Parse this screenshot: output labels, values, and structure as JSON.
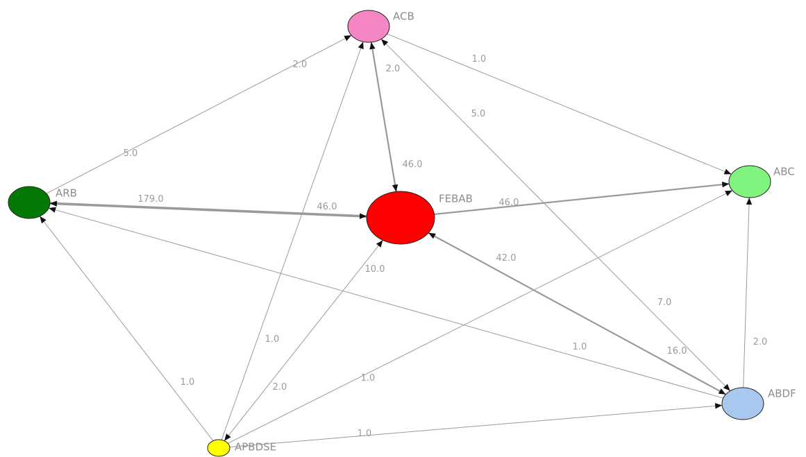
{
  "nodes": [
    {
      "id": "ACB",
      "label": "ACB",
      "color": "#f486c4",
      "size": "medium"
    },
    {
      "id": "ARB",
      "label": "ARB",
      "color": "#047a04",
      "size": "medium"
    },
    {
      "id": "FEBAB",
      "label": "FEBAB",
      "color": "#ff0000",
      "size": "large"
    },
    {
      "id": "ABC",
      "label": "ABC",
      "color": "#80f47f",
      "size": "medium"
    },
    {
      "id": "ABDF",
      "label": "ABDF",
      "color": "#a8c8f0",
      "size": "medium"
    },
    {
      "id": "APBDSE",
      "label": "APBDSE",
      "color": "#ffff00",
      "size": "small"
    }
  ],
  "edges": [
    {
      "id": "arb-acb",
      "from": "ARB",
      "to": "ACB",
      "label_near_source": "5.0",
      "label_near_target": "2.0",
      "weight": "thin"
    },
    {
      "id": "acb-abc",
      "from": "ACB",
      "to": "ABC",
      "label": "1.0",
      "weight": "thin"
    },
    {
      "id": "acb-febab",
      "from": "ACB",
      "to": "FEBAB",
      "label_near_source": "2.0",
      "label_near_target": "46.0",
      "weight": "medium",
      "bidirectional": true
    },
    {
      "id": "abdf-acb",
      "from": "ABDF",
      "to": "ACB",
      "label_near_source": "7.0",
      "label_near_target": "5.0",
      "weight": "thin",
      "bidirectional": true
    },
    {
      "id": "febab-arb",
      "from": "FEBAB",
      "to": "ARB",
      "label_near_source": "46.0",
      "label_near_target": "179.0",
      "weight": "thick",
      "bidirectional": true
    },
    {
      "id": "febab-abc",
      "from": "FEBAB",
      "to": "ABC",
      "label": "46.0",
      "weight": "medium"
    },
    {
      "id": "febab-abdf",
      "from": "FEBAB",
      "to": "ABDF",
      "label_near_source": "42.0",
      "label_near_target": "16.0",
      "weight": "medium",
      "bidirectional": true
    },
    {
      "id": "abdf-abc",
      "from": "ABDF",
      "to": "ABC",
      "label": "2.0",
      "weight": "thin"
    },
    {
      "id": "abdf-arb",
      "from": "ABDF",
      "to": "ARB",
      "label": "1.0",
      "weight": "thin"
    },
    {
      "id": "apbdse-arb",
      "from": "APBDSE",
      "to": "ARB",
      "label": "1.0",
      "weight": "thin"
    },
    {
      "id": "apbdse-acb",
      "from": "APBDSE",
      "to": "ACB",
      "label": "1.0",
      "weight": "thin"
    },
    {
      "id": "apbdse-febab",
      "from": "APBDSE",
      "to": "FEBAB",
      "label_near_source": "2.0",
      "label_near_target": "10.0",
      "weight": "thin",
      "bidirectional": true
    },
    {
      "id": "apbdse-abc",
      "from": "APBDSE",
      "to": "ABC",
      "label": "1.0",
      "weight": "thin"
    },
    {
      "id": "apbdse-abdf",
      "from": "APBDSE",
      "to": "ABDF",
      "label": "1.0",
      "weight": "thin"
    }
  ],
  "style": {
    "edge_color": "#9a9a9a",
    "arrow_color": "#111111",
    "label_color": "#9a9a9a",
    "background": "#ffffff"
  }
}
